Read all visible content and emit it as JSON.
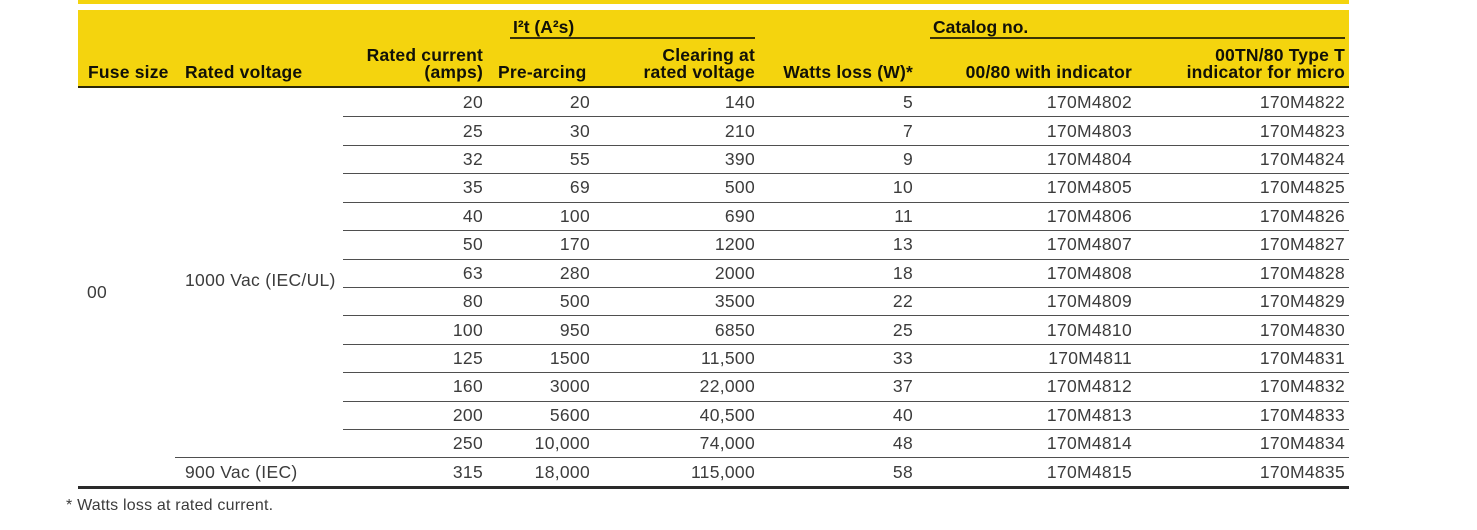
{
  "table": {
    "group_headers": {
      "i2t": "I²t (A²s)",
      "catalog": "Catalog no."
    },
    "column_headers": {
      "fuse_size": "Fuse size",
      "rated_voltage": "Rated voltage",
      "rated_current": "Rated current\n(amps)",
      "pre_arcing": "Pre-arcing",
      "clearing": "Clearing at\nrated voltage",
      "watts_loss": "Watts loss (W)*",
      "catalog_0080": "00/80 with indicator",
      "catalog_00tn": "00TN/80 Type T\nindicator for micro"
    },
    "span_labels": {
      "fuse_size": "00",
      "voltage_main": "1000 Vac (IEC/UL)",
      "voltage_last": "900 Vac (IEC)"
    },
    "rows": [
      {
        "rated_current": "20",
        "pre_arcing": "20",
        "clearing": "140",
        "watts_loss": "5",
        "catalog_0080": "170M4802",
        "catalog_00tn": "170M4822"
      },
      {
        "rated_current": "25",
        "pre_arcing": "30",
        "clearing": "210",
        "watts_loss": "7",
        "catalog_0080": "170M4803",
        "catalog_00tn": "170M4823"
      },
      {
        "rated_current": "32",
        "pre_arcing": "55",
        "clearing": "390",
        "watts_loss": "9",
        "catalog_0080": "170M4804",
        "catalog_00tn": "170M4824"
      },
      {
        "rated_current": "35",
        "pre_arcing": "69",
        "clearing": "500",
        "watts_loss": "10",
        "catalog_0080": "170M4805",
        "catalog_00tn": "170M4825"
      },
      {
        "rated_current": "40",
        "pre_arcing": "100",
        "clearing": "690",
        "watts_loss": "11",
        "catalog_0080": "170M4806",
        "catalog_00tn": "170M4826"
      },
      {
        "rated_current": "50",
        "pre_arcing": "170",
        "clearing": "1200",
        "watts_loss": "13",
        "catalog_0080": "170M4807",
        "catalog_00tn": "170M4827"
      },
      {
        "rated_current": "63",
        "pre_arcing": "280",
        "clearing": "2000",
        "watts_loss": "18",
        "catalog_0080": "170M4808",
        "catalog_00tn": "170M4828"
      },
      {
        "rated_current": "80",
        "pre_arcing": "500",
        "clearing": "3500",
        "watts_loss": "22",
        "catalog_0080": "170M4809",
        "catalog_00tn": "170M4829"
      },
      {
        "rated_current": "100",
        "pre_arcing": "950",
        "clearing": "6850",
        "watts_loss": "25",
        "catalog_0080": "170M4810",
        "catalog_00tn": "170M4830"
      },
      {
        "rated_current": "125",
        "pre_arcing": "1500",
        "clearing": "11,500",
        "watts_loss": "33",
        "catalog_0080": "170M4811",
        "catalog_00tn": "170M4831"
      },
      {
        "rated_current": "160",
        "pre_arcing": "3000",
        "clearing": "22,000",
        "watts_loss": "37",
        "catalog_0080": "170M4812",
        "catalog_00tn": "170M4832"
      },
      {
        "rated_current": "200",
        "pre_arcing": "5600",
        "clearing": "40,500",
        "watts_loss": "40",
        "catalog_0080": "170M4813",
        "catalog_00tn": "170M4833"
      },
      {
        "rated_current": "250",
        "pre_arcing": "10,000",
        "clearing": "74,000",
        "watts_loss": "48",
        "catalog_0080": "170M4814",
        "catalog_00tn": "170M4834"
      },
      {
        "rated_current": "315",
        "pre_arcing": "18,000",
        "clearing": "115,000",
        "watts_loss": "58",
        "catalog_0080": "170M4815",
        "catalog_00tn": "170M4835"
      }
    ],
    "colors": {
      "header_yellow": "#F4D40E",
      "header_rule": "#2b2708",
      "row_divider": "#4f4f4f",
      "bottom_border": "#2a2a2a"
    }
  },
  "footnote": "* Watts loss at rated current."
}
